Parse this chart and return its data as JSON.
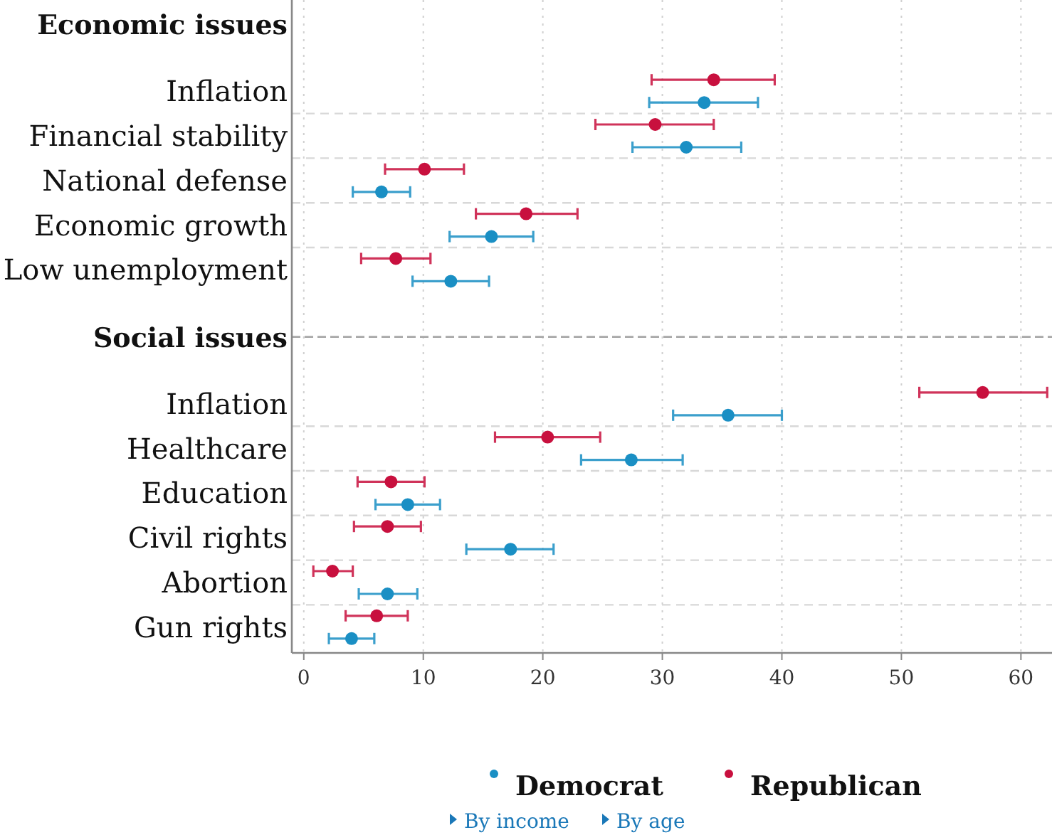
{
  "chart_data": {
    "type": "scatter",
    "orientation": "horizontal",
    "categories": [
      "Economic issues",
      "Inflation",
      "Financial stability",
      "National defense",
      "Economic growth",
      "Low unemployment",
      "Social issues",
      "Inflation",
      "Healthcare",
      "Education",
      "Civil rights",
      "Abortion",
      "Gun rights"
    ],
    "series": [
      {
        "name": "Democrat",
        "color": "#1a8fc4",
        "values": [
          null,
          33.5,
          32.0,
          6.5,
          15.7,
          12.3,
          null,
          35.5,
          27.4,
          8.7,
          17.3,
          7.0,
          4.0
        ],
        "errors": [
          null,
          [
            28.9,
            38.0
          ],
          [
            27.5,
            36.6
          ],
          [
            4.1,
            8.9
          ],
          [
            12.2,
            19.2
          ],
          [
            9.1,
            15.5
          ],
          null,
          [
            30.9,
            40.0
          ],
          [
            23.2,
            31.7
          ],
          [
            6.0,
            11.4
          ],
          [
            13.6,
            20.9
          ],
          [
            4.6,
            9.5
          ],
          [
            2.1,
            5.9
          ]
        ]
      },
      {
        "name": "Republican",
        "color": "#c8103e",
        "values": [
          null,
          34.3,
          29.4,
          10.1,
          18.6,
          7.7,
          null,
          56.8,
          20.4,
          7.3,
          7.0,
          2.4,
          6.1
        ],
        "errors": [
          null,
          [
            29.1,
            39.4
          ],
          [
            24.4,
            34.3
          ],
          [
            6.8,
            13.4
          ],
          [
            14.4,
            22.9
          ],
          [
            4.8,
            10.6
          ],
          null,
          [
            51.5,
            62.2
          ],
          [
            16.0,
            24.8
          ],
          [
            4.5,
            10.1
          ],
          [
            4.2,
            9.8
          ],
          [
            0.8,
            4.1
          ],
          [
            3.5,
            8.7
          ]
        ]
      }
    ],
    "ref_lines": [
      {
        "axis": "y",
        "value": "Social issues",
        "color": "#a8a8a8",
        "line_style": "dashed"
      }
    ],
    "xlim": [
      -1,
      62.6
    ],
    "xticks": [
      0,
      10,
      20,
      30,
      40,
      50,
      60
    ],
    "grid": true,
    "marker": "circle",
    "legend": "bottom",
    "annotations": [
      "By income",
      "By age"
    ]
  }
}
